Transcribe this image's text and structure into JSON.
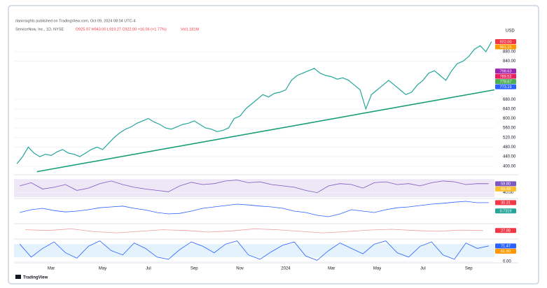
{
  "header": {
    "publisher": "rlaninsights published on TradingView.com, Oct 09, 2024 08:04 UTC-4",
    "symbol": "ServiceNow, Inc., 1D, NYSE",
    "ohlc": "O925.97 H943.00 L919.27 C922.00 +16.06 (+1.77%)",
    "volume": "Vol1.181M"
  },
  "footer": {
    "brand": "TradingView"
  },
  "chart_data": [
    {
      "type": "line",
      "axis_label": "USD",
      "categories": [
        null,
        null,
        null,
        null,
        null,
        null,
        "Mar",
        null,
        null,
        null,
        null,
        null,
        null,
        null,
        null,
        "May",
        null,
        null,
        null,
        null,
        null,
        null,
        null,
        "Jul",
        null,
        null,
        null,
        null,
        null,
        null,
        null,
        "Sep",
        null,
        null,
        null,
        null,
        null,
        null,
        null,
        "Nov",
        null,
        null,
        null,
        null,
        null,
        null,
        null,
        "2024",
        null,
        null,
        null,
        null,
        null,
        null,
        null,
        "Mar",
        null,
        null,
        null,
        null,
        null,
        null,
        null,
        "May",
        null,
        null,
        null,
        null,
        null,
        null,
        null,
        "Jul",
        null,
        null,
        null,
        null,
        null,
        null,
        null,
        "Sep",
        null,
        null,
        null,
        null
      ],
      "series": [
        {
          "color": "#26a69a",
          "values": [
            410,
            440,
            480,
            455,
            440,
            450,
            445,
            460,
            470,
            455,
            450,
            440,
            455,
            470,
            480,
            470,
            495,
            520,
            540,
            555,
            565,
            580,
            590,
            600,
            585,
            575,
            560,
            555,
            565,
            575,
            580,
            590,
            575,
            560,
            555,
            545,
            550,
            560,
            600,
            610,
            640,
            660,
            680,
            700,
            690,
            705,
            710,
            720,
            760,
            780,
            790,
            800,
            810,
            790,
            780,
            775,
            765,
            770,
            760,
            740,
            720,
            640,
            700,
            720,
            740,
            760,
            740,
            720,
            700,
            710,
            740,
            760,
            790,
            800,
            780,
            760,
            800,
            830,
            840,
            860,
            890,
            905,
            880,
            922
          ]
        }
      ],
      "lines": [
        {
          "color": "#1a9e77",
          "x": [
            3.5,
            83.5
          ],
          "values": [
            377,
            720
          ]
        }
      ],
      "ylim": [
        370,
        950
      ],
      "yticks": [
        {
          "value": 400,
          "label": "400.00"
        },
        {
          "value": 440,
          "label": "440.00"
        },
        {
          "value": 480,
          "label": "480.00"
        },
        {
          "value": 520,
          "label": "520.00"
        },
        {
          "value": 560,
          "label": "560.00"
        },
        {
          "value": 600,
          "label": "600.00"
        },
        {
          "value": 640,
          "label": "640.00"
        },
        {
          "value": 680,
          "label": "680.00"
        },
        {
          "value": 840,
          "label": "840.00"
        },
        {
          "value": 880,
          "label": "880.00"
        }
      ],
      "badges": [
        {
          "value": 922,
          "label": "922.00",
          "color": "#f23645"
        },
        {
          "value": 901.15,
          "label": "901.15",
          "color": "#ff9800"
        },
        {
          "value": 798.63,
          "label": "798.63",
          "color": "#9c27b0"
        },
        {
          "value": 789.52,
          "label": "789.52",
          "color": "#e91e63"
        },
        {
          "value": 778.67,
          "label": "778.67",
          "color": "#4caf50"
        },
        {
          "value": 773.19,
          "label": "773.19",
          "color": "#2962ff"
        }
      ]
    },
    {
      "type": "line",
      "band": [
        30,
        70
      ],
      "band_color": "#ede7f6",
      "series": [
        {
          "color": "#7e57c2",
          "values": [
            55,
            62,
            48,
            52,
            58,
            45,
            50,
            60,
            66,
            58,
            52,
            48,
            45,
            42,
            55,
            63,
            58,
            60,
            66,
            68,
            62,
            64,
            58,
            55,
            52,
            45,
            40,
            55,
            60,
            58,
            50,
            62,
            64,
            58,
            60,
            55,
            62,
            66,
            64,
            58,
            60,
            59.8
          ]
        }
      ],
      "ylim": [
        30,
        72
      ],
      "yticks": [
        {
          "value": 40,
          "label": "40.00"
        }
      ],
      "badges": [
        {
          "value": 59.8,
          "label": "59.80",
          "color": "#7e57c2"
        },
        {
          "value": 59.48,
          "label": "59.48",
          "color": "#fbc02d"
        }
      ]
    },
    {
      "type": "line",
      "series": [
        {
          "color": "#2962ff",
          "values": [
            -5,
            5,
            10,
            2,
            -3,
            0,
            5,
            12,
            15,
            18,
            10,
            4,
            -5,
            -10,
            -8,
            0,
            10,
            15,
            20,
            25,
            22,
            18,
            15,
            10,
            0,
            -5,
            -15,
            -20,
            -10,
            5,
            0,
            -5,
            5,
            12,
            15,
            20,
            25,
            28,
            32,
            35,
            30,
            30.31
          ]
        }
      ],
      "ylim": [
        -40,
        45
      ],
      "yticks": [],
      "badges": [
        {
          "value": 30.31,
          "label": "30.31",
          "color": "#f23645"
        },
        {
          "value": 0.7319,
          "label": "0.7319",
          "color": "#26a69a"
        }
      ]
    },
    {
      "type": "line",
      "series": [
        {
          "color": "#ef9a9a",
          "values": [
            30,
            28,
            32,
            25,
            22,
            26,
            30,
            28,
            24,
            27,
            32,
            30,
            26,
            22,
            25,
            29,
            31,
            28,
            26,
            29,
            27.88
          ]
        }
      ],
      "ylim": [
        10,
        45
      ],
      "yticks": [],
      "badges": [
        {
          "value": 27.88,
          "label": "27.88",
          "color": "#f23645"
        }
      ]
    },
    {
      "type": "line",
      "band": [
        20,
        80
      ],
      "band_color": "#e3f2fd",
      "series": [
        {
          "color": "#2962ff",
          "values": [
            80,
            20,
            60,
            90,
            40,
            15,
            70,
            95,
            50,
            30,
            85,
            60,
            20,
            10,
            55,
            90,
            70,
            40,
            80,
            95,
            30,
            10,
            45,
            75,
            90,
            25,
            5,
            50,
            85,
            60,
            35,
            80,
            95,
            40,
            20,
            70,
            90,
            30,
            10,
            85,
            60,
            71.47
          ]
        }
      ],
      "ylim": [
        0,
        100
      ],
      "yticks": [
        {
          "value": 0,
          "label": "0.00"
        }
      ],
      "badges": [
        {
          "value": 71.47,
          "label": "71.47",
          "color": "#2962ff"
        },
        {
          "value": 61.8,
          "label": "61.80",
          "color": "#ff9800"
        }
      ]
    }
  ]
}
